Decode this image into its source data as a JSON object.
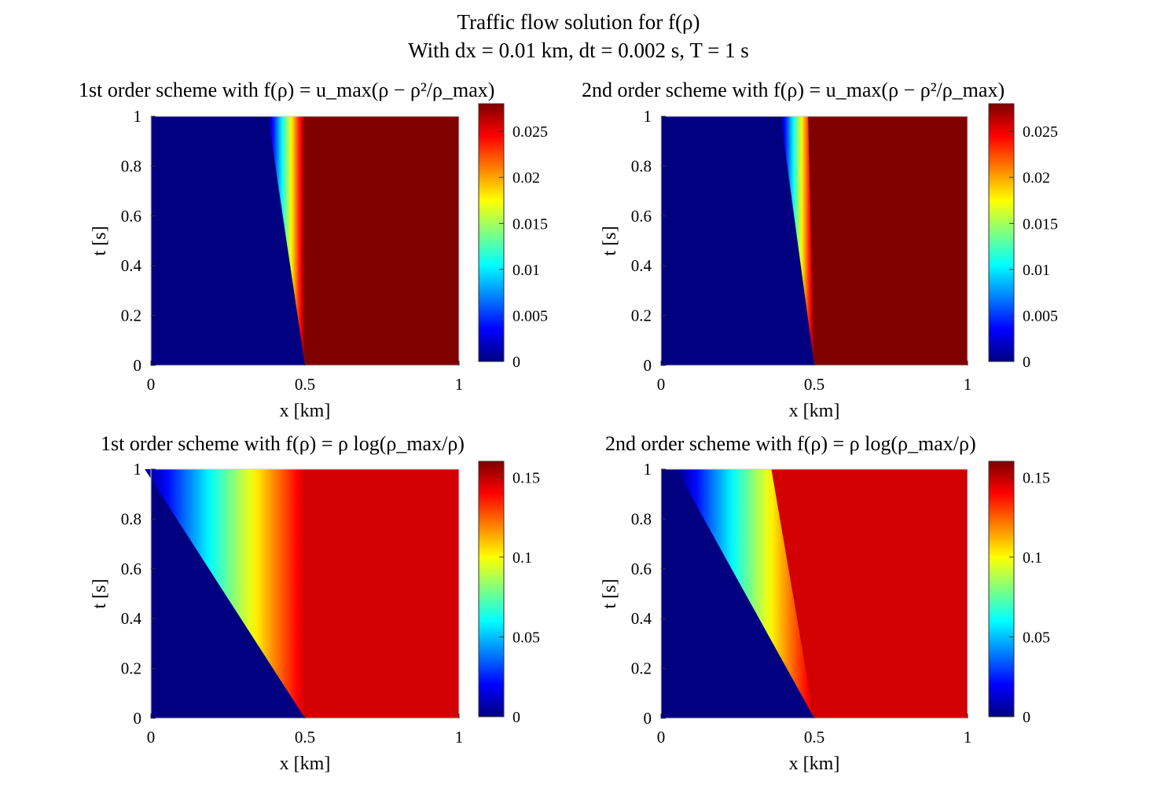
{
  "figure": {
    "title_line1": "Traffic flow solution for f(ρ)",
    "title_line2": "With dx = 0.01 km, dt = 0.002 s, T = 1 s"
  },
  "chart_data": [
    {
      "type": "heatmap",
      "title": "1st order scheme with f(ρ) = u_max(ρ − ρ²/ρ_max)",
      "xlabel": "x [km]",
      "ylabel": "t [s]",
      "xlim": [
        0,
        1
      ],
      "ylim": [
        0,
        1
      ],
      "xticks": [
        "0",
        "0.5",
        "1"
      ],
      "yticks": [
        "0",
        "0.2",
        "0.4",
        "0.6",
        "0.8",
        "1"
      ],
      "colormap": "jet",
      "clim": [
        0,
        0.028
      ],
      "colorbar_ticks": [
        "0",
        "0.005",
        "0.01",
        "0.015",
        "0.02",
        "0.025"
      ],
      "colorbar_values": [
        0,
        0.005,
        0.01,
        0.015,
        0.02,
        0.025
      ],
      "initial_discontinuity_x": 0.5,
      "fan_left_edge_x_at_t1": 0.38,
      "fan_right_edge_x_at_t1": 0.5,
      "right_state_value": 0.028,
      "left_state_value": 0
    },
    {
      "type": "heatmap",
      "title": "2nd order scheme with f(ρ) = u_max(ρ − ρ²/ρ_max)",
      "xlabel": "x [km]",
      "ylabel": "t [s]",
      "xlim": [
        0,
        1
      ],
      "ylim": [
        0,
        1
      ],
      "xticks": [
        "0",
        "0.5",
        "1"
      ],
      "yticks": [
        "0",
        "0.2",
        "0.4",
        "0.6",
        "0.8",
        "1"
      ],
      "colormap": "jet",
      "clim": [
        0,
        0.028
      ],
      "colorbar_ticks": [
        "0",
        "0.005",
        "0.01",
        "0.015",
        "0.02",
        "0.025"
      ],
      "colorbar_values": [
        0,
        0.005,
        0.01,
        0.015,
        0.02,
        0.025
      ],
      "initial_discontinuity_x": 0.5,
      "fan_left_edge_x_at_t1": 0.39,
      "fan_right_edge_x_at_t1": 0.48,
      "right_state_value": 0.028,
      "left_state_value": 0
    },
    {
      "type": "heatmap",
      "title": "1st order scheme with f(ρ) = ρ log(ρ_max/ρ)",
      "xlabel": "x [km]",
      "ylabel": "t [s]",
      "xlim": [
        0,
        1
      ],
      "ylim": [
        0,
        1
      ],
      "xticks": [
        "0",
        "0.5",
        "1"
      ],
      "yticks": [
        "0",
        "0.2",
        "0.4",
        "0.6",
        "0.8",
        "1"
      ],
      "colormap": "jet",
      "clim": [
        0,
        0.16
      ],
      "colorbar_ticks": [
        "0",
        "0.05",
        "0.1",
        "0.15"
      ],
      "colorbar_values": [
        0,
        0.05,
        0.1,
        0.15
      ],
      "initial_discontinuity_x": 0.5,
      "fan_left_edge_x_at_t1": -0.02,
      "fan_right_edge_x_at_t1": 0.5,
      "right_state_value": 0.147,
      "left_state_value": 0
    },
    {
      "type": "heatmap",
      "title": "2nd order scheme with f(ρ) = ρ log(ρ_max/ρ)",
      "xlabel": "x [km]",
      "ylabel": "t [s]",
      "xlim": [
        0,
        1
      ],
      "ylim": [
        0,
        1
      ],
      "xticks": [
        "0",
        "0.5",
        "1"
      ],
      "yticks": [
        "0",
        "0.2",
        "0.4",
        "0.6",
        "0.8",
        "1"
      ],
      "colormap": "jet",
      "clim": [
        0,
        0.16
      ],
      "colorbar_ticks": [
        "0",
        "0.05",
        "0.1",
        "0.15"
      ],
      "colorbar_values": [
        0,
        0.05,
        0.1,
        0.15
      ],
      "initial_discontinuity_x": 0.5,
      "fan_left_edge_x_at_t1": 0.05,
      "fan_right_edge_x_at_t1": 0.36,
      "right_state_value": 0.147,
      "left_state_value": 0
    }
  ]
}
